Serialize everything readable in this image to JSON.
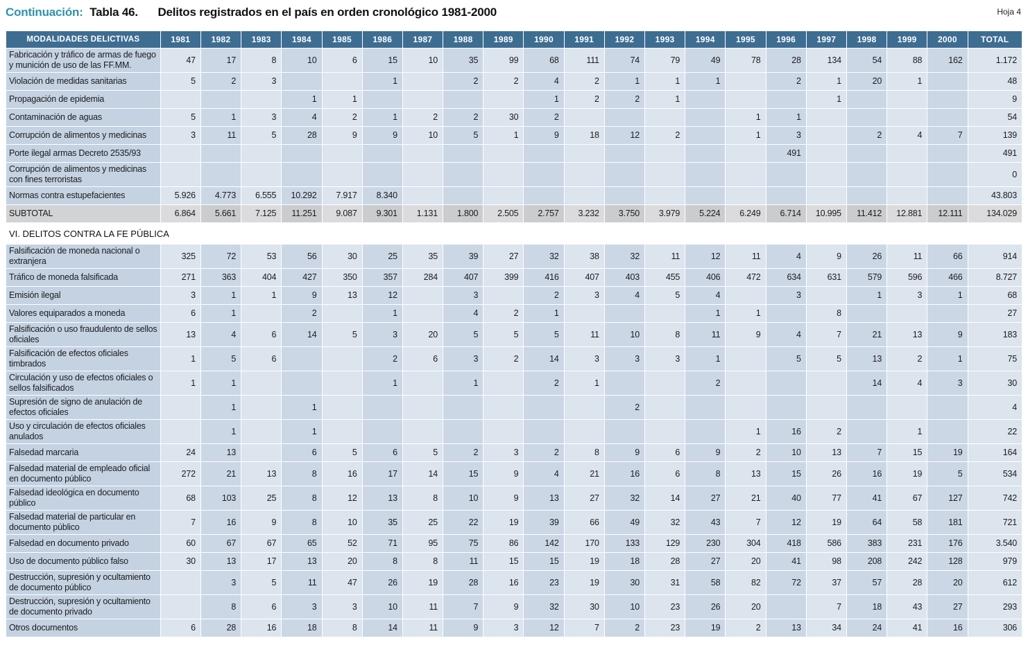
{
  "header": {
    "continuation": "Continuación:",
    "table_number": "Tabla 46.",
    "title": "Delitos registrados en el país en orden cronológico 1981-2000",
    "sheet": "Hoja 4"
  },
  "colors": {
    "header_bg": "#3e6d92",
    "label_column_bg": "#c4d2e2",
    "column_light": "#dce4ee",
    "column_dark": "#cbd7e5",
    "subtotal_bg": "#d2d3d5",
    "accent_teal": "#2e93ad"
  },
  "table": {
    "header": [
      "MODALIDADES DELICTIVAS",
      "1981",
      "1982",
      "1983",
      "1984",
      "1985",
      "1986",
      "1987",
      "1988",
      "1989",
      "1990",
      "1991",
      "1992",
      "1993",
      "1994",
      "1995",
      "1996",
      "1997",
      "1998",
      "1999",
      "2000",
      "TOTAL"
    ],
    "rows": [
      {
        "type": "data",
        "label": "Fabricación y tráfico de armas de fuego y munición de uso de las FF.MM.",
        "values": [
          "47",
          "17",
          "8",
          "10",
          "6",
          "15",
          "10",
          "35",
          "99",
          "68",
          "111",
          "74",
          "79",
          "49",
          "78",
          "28",
          "134",
          "54",
          "88",
          "162",
          "1.172"
        ]
      },
      {
        "type": "data",
        "label": "Violación de medidas sanitarias",
        "values": [
          "5",
          "2",
          "3",
          "",
          "",
          "1",
          "",
          "2",
          "2",
          "4",
          "2",
          "1",
          "1",
          "1",
          "",
          "2",
          "1",
          "20",
          "1",
          "",
          "48"
        ]
      },
      {
        "type": "data",
        "label": "Propagación de epidemia",
        "values": [
          "",
          "",
          "",
          "1",
          "1",
          "",
          "",
          "",
          "",
          "1",
          "2",
          "2",
          "1",
          "",
          "",
          "",
          "1",
          "",
          "",
          "",
          "9"
        ]
      },
      {
        "type": "data",
        "label": "Contaminación de aguas",
        "values": [
          "5",
          "1",
          "3",
          "4",
          "2",
          "1",
          "2",
          "2",
          "30",
          "2",
          "",
          "",
          "",
          "",
          "1",
          "1",
          "",
          "",
          "",
          "",
          "54"
        ]
      },
      {
        "type": "data",
        "label": "Corrupción de alimentos y medicinas",
        "values": [
          "3",
          "11",
          "5",
          "28",
          "9",
          "9",
          "10",
          "5",
          "1",
          "9",
          "18",
          "12",
          "2",
          "",
          "1",
          "3",
          "",
          "2",
          "4",
          "7",
          "139"
        ]
      },
      {
        "type": "data",
        "label": "Porte ilegal armas Decreto 2535/93",
        "values": [
          "",
          "",
          "",
          "",
          "",
          "",
          "",
          "",
          "",
          "",
          "",
          "",
          "",
          "",
          "",
          "491",
          "",
          "",
          "",
          "",
          "491"
        ]
      },
      {
        "type": "data",
        "label": "Corrupción de alimentos y medicinas con fines terroristas",
        "values": [
          "",
          "",
          "",
          "",
          "",
          "",
          "",
          "",
          "",
          "",
          "",
          "",
          "",
          "",
          "",
          "",
          "",
          "",
          "",
          "",
          "0"
        ]
      },
      {
        "type": "data",
        "label": "Normas contra estupefacientes",
        "values": [
          "5.926",
          "4.773",
          "6.555",
          "10.292",
          "7.917",
          "8.340",
          "",
          "",
          "",
          "",
          "",
          "",
          "",
          "",
          "",
          "",
          "",
          "",
          "",
          "",
          "43.803"
        ]
      },
      {
        "type": "subtotal",
        "label": "SUBTOTAL",
        "values": [
          "6.864",
          "5.661",
          "7.125",
          "11.251",
          "9.087",
          "9.301",
          "1.131",
          "1.800",
          "2.505",
          "2.757",
          "3.232",
          "3.750",
          "3.979",
          "5.224",
          "6.249",
          "6.714",
          "10.995",
          "11.412",
          "12.881",
          "12.111",
          "134.029"
        ]
      },
      {
        "type": "section",
        "label": "VI. DELITOS CONTRA LA FE PÚBLICA",
        "values": []
      },
      {
        "type": "data",
        "label": "Falsificación de moneda nacional o extranjera",
        "values": [
          "325",
          "72",
          "53",
          "56",
          "30",
          "25",
          "35",
          "39",
          "27",
          "32",
          "38",
          "32",
          "11",
          "12",
          "11",
          "4",
          "9",
          "26",
          "11",
          "66",
          "914"
        ]
      },
      {
        "type": "data",
        "label": "Tráfico de moneda falsificada",
        "values": [
          "271",
          "363",
          "404",
          "427",
          "350",
          "357",
          "284",
          "407",
          "399",
          "416",
          "407",
          "403",
          "455",
          "406",
          "472",
          "634",
          "631",
          "579",
          "596",
          "466",
          "8.727"
        ]
      },
      {
        "type": "data",
        "label": "Emisión ilegal",
        "values": [
          "3",
          "1",
          "1",
          "9",
          "13",
          "12",
          "",
          "3",
          "",
          "2",
          "3",
          "4",
          "5",
          "4",
          "",
          "3",
          "",
          "1",
          "3",
          "1",
          "68"
        ]
      },
      {
        "type": "data",
        "label": "Valores equiparados a moneda",
        "values": [
          "6",
          "1",
          "",
          "2",
          "",
          "1",
          "",
          "4",
          "2",
          "1",
          "",
          "",
          "",
          "1",
          "1",
          "",
          "8",
          "",
          "",
          "",
          "27"
        ]
      },
      {
        "type": "data",
        "label": "Falsificación o uso fraudulento de sellos oficiales",
        "values": [
          "13",
          "4",
          "6",
          "14",
          "5",
          "3",
          "20",
          "5",
          "5",
          "5",
          "11",
          "10",
          "8",
          "11",
          "9",
          "4",
          "7",
          "21",
          "13",
          "9",
          "183"
        ]
      },
      {
        "type": "data",
        "label": "Falsificación de efectos oficiales timbrados",
        "values": [
          "1",
          "5",
          "6",
          "",
          "",
          "2",
          "6",
          "3",
          "2",
          "14",
          "3",
          "3",
          "3",
          "1",
          "",
          "5",
          "5",
          "13",
          "2",
          "1",
          "75"
        ]
      },
      {
        "type": "data",
        "label": "Circulación y uso de efectos oficiales o sellos falsificados",
        "values": [
          "1",
          "1",
          "",
          "",
          "",
          "1",
          "",
          "1",
          "",
          "2",
          "1",
          "",
          "",
          "2",
          "",
          "",
          "",
          "14",
          "4",
          "3",
          "30"
        ]
      },
      {
        "type": "data",
        "label": "Supresión de signo de anulación de efectos oficiales",
        "values": [
          "",
          "1",
          "",
          "1",
          "",
          "",
          "",
          "",
          "",
          "",
          "",
          "2",
          "",
          "",
          "",
          "",
          "",
          "",
          "",
          "",
          "4"
        ]
      },
      {
        "type": "data",
        "label": "Uso y circulación de efectos oficiales anulados",
        "values": [
          "",
          "1",
          "",
          "1",
          "",
          "",
          "",
          "",
          "",
          "",
          "",
          "",
          "",
          "",
          "1",
          "16",
          "2",
          "",
          "1",
          "",
          "22"
        ]
      },
      {
        "type": "data",
        "label": "Falsedad marcaria",
        "values": [
          "24",
          "13",
          "",
          "6",
          "5",
          "6",
          "5",
          "2",
          "3",
          "2",
          "8",
          "9",
          "6",
          "9",
          "2",
          "10",
          "13",
          "7",
          "15",
          "19",
          "164"
        ]
      },
      {
        "type": "data",
        "label": "Falsedad material de empleado oficial en documento público",
        "values": [
          "272",
          "21",
          "13",
          "8",
          "16",
          "17",
          "14",
          "15",
          "9",
          "4",
          "21",
          "16",
          "6",
          "8",
          "13",
          "15",
          "26",
          "16",
          "19",
          "5",
          "534"
        ]
      },
      {
        "type": "data",
        "label": "Falsedad ideológica en documento público",
        "values": [
          "68",
          "103",
          "25",
          "8",
          "12",
          "13",
          "8",
          "10",
          "9",
          "13",
          "27",
          "32",
          "14",
          "27",
          "21",
          "40",
          "77",
          "41",
          "67",
          "127",
          "742"
        ]
      },
      {
        "type": "data",
        "label": "Falsedad material de particular en documento público",
        "values": [
          "7",
          "16",
          "9",
          "8",
          "10",
          "35",
          "25",
          "22",
          "19",
          "39",
          "66",
          "49",
          "32",
          "43",
          "7",
          "12",
          "19",
          "64",
          "58",
          "181",
          "721"
        ]
      },
      {
        "type": "data",
        "label": "Falsedad en documento privado",
        "values": [
          "60",
          "67",
          "67",
          "65",
          "52",
          "71",
          "95",
          "75",
          "86",
          "142",
          "170",
          "133",
          "129",
          "230",
          "304",
          "418",
          "586",
          "383",
          "231",
          "176",
          "3.540"
        ]
      },
      {
        "type": "data",
        "label": "Uso de documento público falso",
        "values": [
          "30",
          "13",
          "17",
          "13",
          "20",
          "8",
          "8",
          "11",
          "15",
          "15",
          "19",
          "18",
          "28",
          "27",
          "20",
          "41",
          "98",
          "208",
          "242",
          "128",
          "979"
        ]
      },
      {
        "type": "data",
        "label": "Destrucción, supresión y ocultamiento de documento público",
        "values": [
          "",
          "3",
          "5",
          "11",
          "47",
          "26",
          "19",
          "28",
          "16",
          "23",
          "19",
          "30",
          "31",
          "58",
          "82",
          "72",
          "37",
          "57",
          "28",
          "20",
          "612"
        ]
      },
      {
        "type": "data",
        "label": "Destrucción, supresión y ocultamiento de documento privado",
        "values": [
          "",
          "8",
          "6",
          "3",
          "3",
          "10",
          "11",
          "7",
          "9",
          "32",
          "30",
          "10",
          "23",
          "26",
          "20",
          "",
          "7",
          "18",
          "43",
          "27",
          "293"
        ]
      },
      {
        "type": "data",
        "label": "Otros documentos",
        "values": [
          "6",
          "28",
          "16",
          "18",
          "8",
          "14",
          "11",
          "9",
          "3",
          "12",
          "7",
          "2",
          "23",
          "19",
          "2",
          "13",
          "34",
          "24",
          "41",
          "16",
          "306"
        ]
      }
    ]
  }
}
